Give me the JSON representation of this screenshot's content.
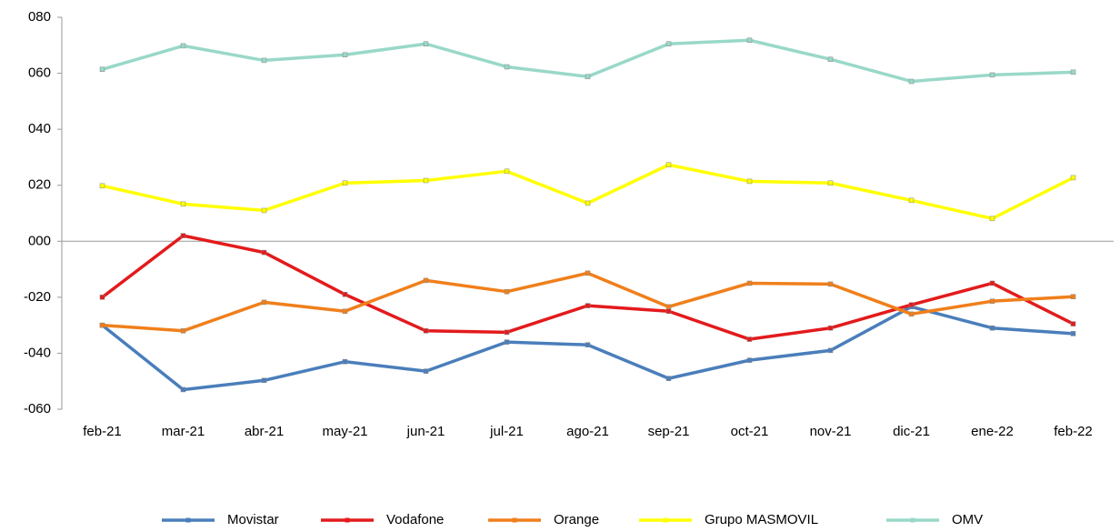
{
  "chart_data": {
    "type": "line",
    "categories": [
      "feb-21",
      "mar-21",
      "abr-21",
      "may-21",
      "jun-21",
      "jul-21",
      "ago-21",
      "sep-21",
      "oct-21",
      "nov-21",
      "dic-21",
      "ene-22",
      "feb-22"
    ],
    "series": [
      {
        "name": "Movistar",
        "color": "#4a7ebb",
        "values": [
          -30,
          -53,
          -49.7,
          -43,
          -46.4,
          -36,
          -37,
          -49,
          -42.5,
          -39,
          -23.4,
          -31,
          -33
        ]
      },
      {
        "name": "Vodafone",
        "color": "#e31a1c",
        "values": [
          -20,
          2,
          -4,
          -19,
          -32,
          -32.5,
          -23,
          -25,
          -35,
          -31,
          -22.7,
          -15,
          -29.5
        ]
      },
      {
        "name": "Orange",
        "color": "#f07f1b",
        "values": [
          -30,
          -32,
          -21.8,
          -25,
          -14,
          -18,
          -11.4,
          -23.4,
          -15,
          -15.3,
          -26,
          -21.4,
          -19.8
        ]
      },
      {
        "name": "Grupo MASMOVIL",
        "color": "#ffff00",
        "values": [
          19.8,
          13.3,
          11,
          20.8,
          21.7,
          25,
          13.6,
          27.3,
          21.4,
          20.8,
          14.6,
          8.1,
          22.7
        ]
      },
      {
        "name": "OMV",
        "color": "#99d8c9",
        "values": [
          61.4,
          69.8,
          64.6,
          66.6,
          70.5,
          62.3,
          58.8,
          70.5,
          71.8,
          65,
          57.1,
          59.4,
          60.4
        ]
      }
    ],
    "ylim": [
      -60,
      80
    ],
    "yticks": [
      {
        "value": 80,
        "label": "080"
      },
      {
        "value": 60,
        "label": "060"
      },
      {
        "value": 40,
        "label": "040"
      },
      {
        "value": 20,
        "label": "020"
      },
      {
        "value": 0,
        "label": "000"
      },
      {
        "value": -20,
        "label": "-020"
      },
      {
        "value": -40,
        "label": "-040"
      },
      {
        "value": -60,
        "label": "-060"
      }
    ],
    "grid": false,
    "legend": "bottom"
  }
}
